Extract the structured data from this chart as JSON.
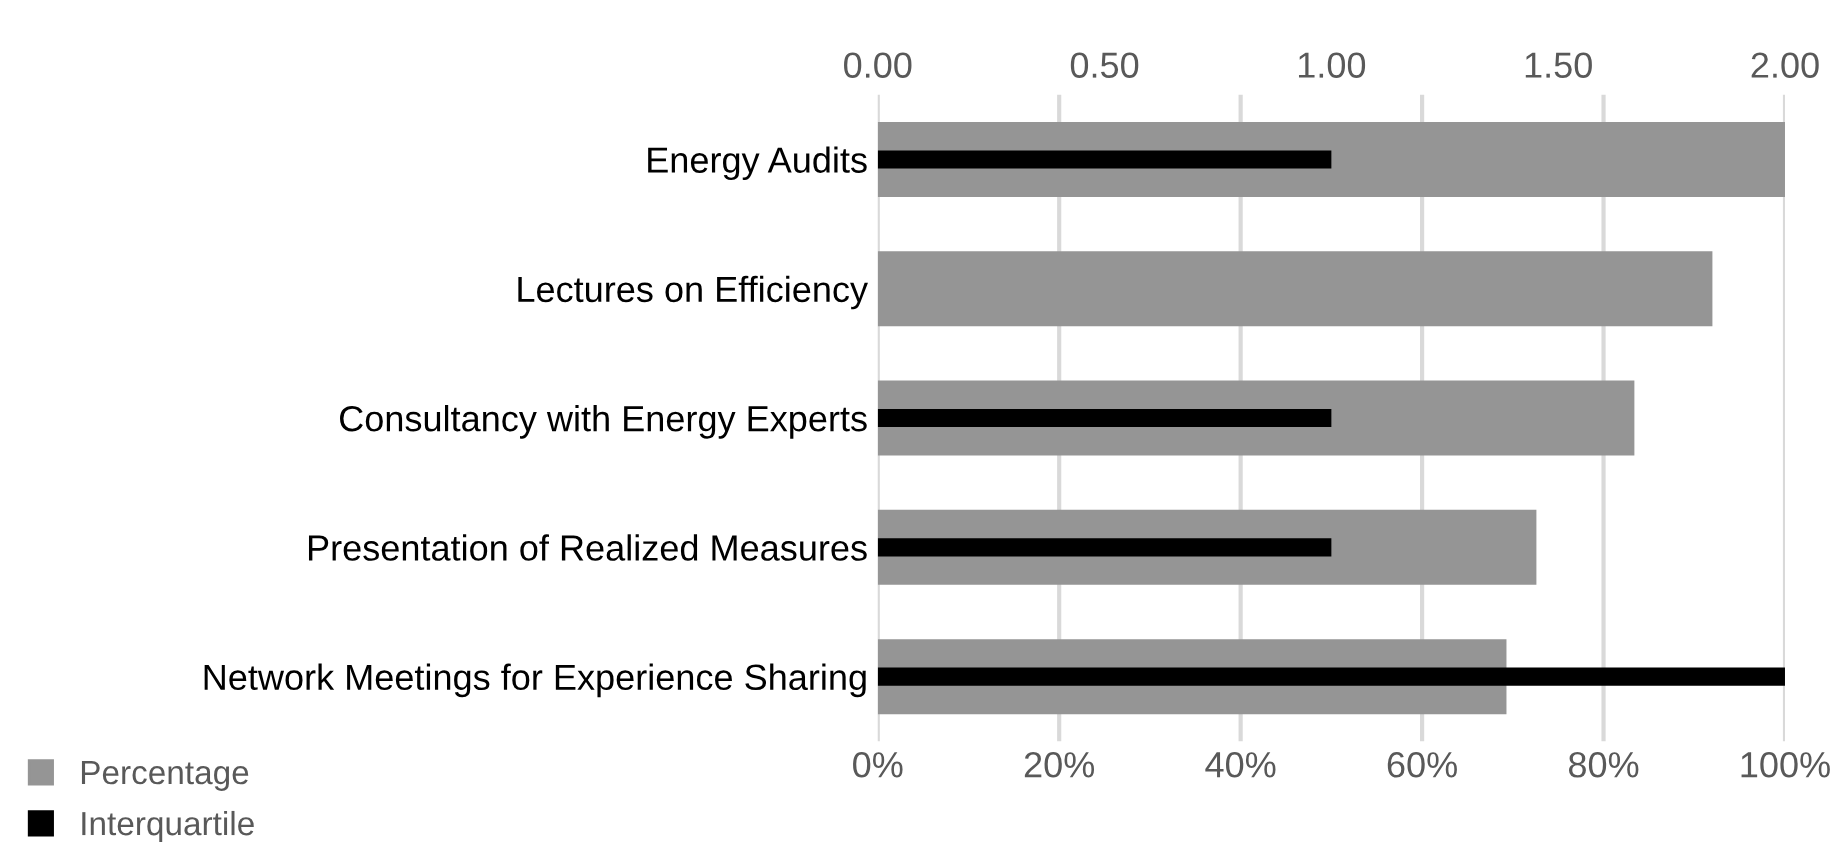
{
  "chart_data": {
    "type": "bar",
    "orientation": "horizontal",
    "categories": [
      "Energy Audits",
      "Lectures on Efficiency",
      "Consultancy with Energy Experts",
      "Presentation of Realized Measures",
      "Network Meetings for Experience Sharing"
    ],
    "series": [
      {
        "name": "Percentage",
        "color": "#959595",
        "values": [
          100,
          92,
          83.4,
          72.6,
          69.3
        ]
      },
      {
        "name": "Interquartile",
        "color": "#000000",
        "axis": "x2",
        "values": [
          1.0,
          null,
          1.0,
          1.0,
          2.0
        ]
      }
    ],
    "xlim": [
      0,
      100
    ],
    "xticks": [
      {
        "value": 0,
        "label": "0%"
      },
      {
        "value": 20,
        "label": "20%"
      },
      {
        "value": 40,
        "label": "40%"
      },
      {
        "value": 60,
        "label": "60%"
      },
      {
        "value": 80,
        "label": "80%"
      },
      {
        "value": 100,
        "label": "100%"
      }
    ],
    "x2lim": [
      0,
      2
    ],
    "x2ticks": [
      {
        "value": 0,
        "label": "0.00"
      },
      {
        "value": 0.5,
        "label": "0.50"
      },
      {
        "value": 1.0,
        "label": "1.00"
      },
      {
        "value": 1.5,
        "label": "1.50"
      },
      {
        "value": 2.0,
        "label": "2.00"
      }
    ],
    "grid": "x",
    "legend": "bottom left"
  }
}
